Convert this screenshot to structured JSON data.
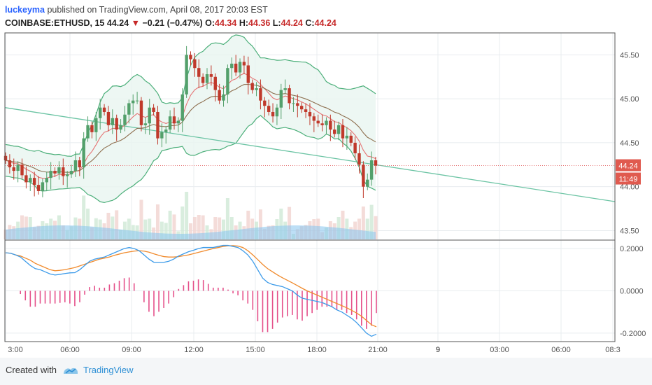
{
  "header": {
    "author": "luckeyma",
    "published": "published on TradingView.com, April 08, 2017 20:03 EST"
  },
  "quote": {
    "symbol": "COINBASE:ETHUSD, 15",
    "last": "44.24",
    "change": "−0.21 (−0.47%)",
    "o_label": "O:",
    "o": "44.34",
    "h_label": "H:",
    "h": "44.36",
    "l_label": "L:",
    "l": "44.24",
    "c_label": "C:",
    "c": "44.24"
  },
  "footer": {
    "created_with": "Created with",
    "brand": "TradingView"
  },
  "chart_data": {
    "type": "candlestick",
    "x_tick_labels": [
      "3:00",
      "06:00",
      "09:00",
      "12:00",
      "15:00",
      "18:00",
      "21:00",
      "9",
      "03:00",
      "06:00",
      "08:3"
    ],
    "price_axis": {
      "range": [
        43.4,
        45.75
      ],
      "tick_labels": [
        "45.50",
        "45.00",
        "44.50",
        "44.00",
        "43.50"
      ],
      "last_price_label": "44.24",
      "countdown_label": "11:49"
    },
    "macd_axis": {
      "range": [
        -0.24,
        0.24
      ],
      "tick_labels": [
        "0.2000",
        "0.0000",
        "-0.2000"
      ]
    },
    "colors": {
      "up": "#53a06b",
      "down": "#c0392b",
      "grid": "#e8ecef",
      "bb_line": "#4caf7a",
      "bb_fill": "#e8f5f0",
      "ema_fast": "#e57373",
      "ema_slow": "#8d6e4e",
      "trend": "#6cc4a4",
      "volume": "#86c5ee",
      "macd": "#3d9be9",
      "signal": "#f08a2c",
      "hist": "#e5508a"
    },
    "price_series": {
      "closes": [
        44.3,
        44.22,
        44.18,
        44.25,
        44.13,
        44.05,
        44.1,
        44.02,
        43.95,
        44.05,
        44.1,
        44.18,
        44.15,
        44.22,
        44.12,
        44.14,
        44.18,
        44.3,
        44.22,
        44.55,
        44.7,
        44.62,
        44.78,
        44.9,
        44.85,
        44.7,
        44.78,
        44.65,
        44.7,
        44.82,
        44.95,
        44.98,
        44.98,
        44.7,
        44.72,
        44.9,
        44.85,
        44.55,
        44.62,
        44.65,
        44.8,
        44.72,
        44.75,
        45.05,
        45.5,
        45.45,
        45.35,
        45.25,
        45.18,
        45.28,
        45.25,
        45.1,
        44.98,
        45.05,
        45.35,
        45.4,
        45.3,
        45.42,
        45.38,
        45.18,
        45.1,
        45.12,
        44.98,
        44.92,
        44.85,
        44.8,
        44.9,
        45.1,
        45.12,
        44.95,
        44.95,
        44.92,
        44.88,
        44.85,
        44.8,
        44.75,
        44.72,
        44.7,
        44.75,
        44.65,
        44.6,
        44.7,
        44.55,
        44.58,
        44.5,
        44.38,
        44.25,
        44.0,
        44.08,
        44.3,
        44.24
      ]
    },
    "macd_series": {
      "macd": [
        0.18,
        0.178,
        0.17,
        0.16,
        0.14,
        0.12,
        0.105,
        0.1,
        0.09,
        0.08,
        0.075,
        0.078,
        0.082,
        0.085,
        0.086,
        0.1,
        0.12,
        0.14,
        0.15,
        0.155,
        0.16,
        0.17,
        0.18,
        0.19,
        0.2,
        0.205,
        0.2,
        0.19,
        0.17,
        0.15,
        0.135,
        0.135,
        0.135,
        0.14,
        0.15,
        0.165,
        0.175,
        0.185,
        0.192,
        0.2,
        0.205,
        0.205,
        0.205,
        0.21,
        0.215,
        0.215,
        0.21,
        0.205,
        0.19,
        0.17,
        0.14,
        0.1,
        0.06,
        0.04,
        0.03,
        0.025,
        0.02,
        0.01,
        0.0,
        -0.02,
        -0.035,
        -0.04,
        -0.045,
        -0.05,
        -0.055,
        -0.065,
        -0.075,
        -0.09,
        -0.1,
        -0.115,
        -0.13,
        -0.15,
        -0.175,
        -0.2,
        -0.215,
        -0.205
      ],
      "signal": [
        0.18,
        0.178,
        0.17,
        0.165,
        0.155,
        0.145,
        0.13,
        0.12,
        0.11,
        0.1,
        0.095,
        0.097,
        0.1,
        0.105,
        0.11,
        0.118,
        0.126,
        0.134,
        0.142,
        0.15,
        0.155,
        0.16,
        0.168,
        0.174,
        0.18,
        0.184,
        0.188,
        0.19,
        0.188,
        0.183,
        0.175,
        0.168,
        0.162,
        0.16,
        0.16,
        0.162,
        0.166,
        0.17,
        0.176,
        0.182,
        0.188,
        0.194,
        0.2,
        0.205,
        0.21,
        0.213,
        0.214,
        0.212,
        0.205,
        0.19,
        0.17,
        0.148,
        0.125,
        0.105,
        0.09,
        0.075,
        0.062,
        0.05,
        0.038,
        0.025,
        0.012,
        0.0,
        -0.01,
        -0.02,
        -0.03,
        -0.04,
        -0.05,
        -0.06,
        -0.07,
        -0.08,
        -0.092,
        -0.105,
        -0.12,
        -0.14,
        -0.16,
        -0.17
      ]
    }
  }
}
